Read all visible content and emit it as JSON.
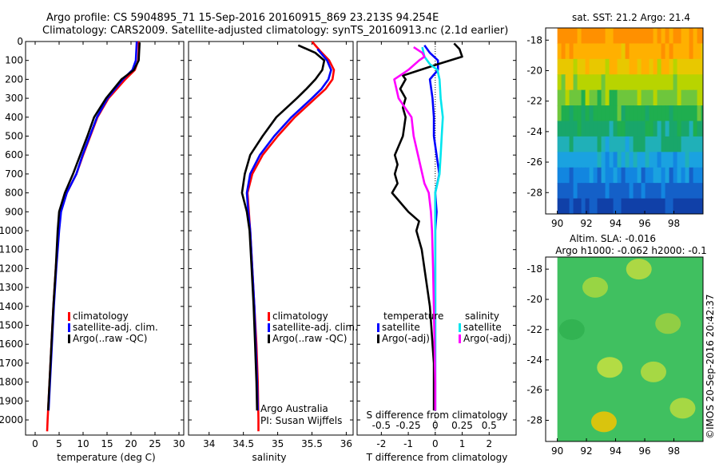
{
  "header": {
    "line1": "Argo profile: CS 5904895_71 15-Sep-2016 20160915_869 23.213S 94.254E",
    "line2": "Climatology: CARS2009. Satellite-adjusted climatology: synTS_20160913.nc (2.1d earlier)"
  },
  "colors": {
    "climatology": "#ff0000",
    "satellite": "#0000ff",
    "argo": "#000000",
    "sat_salinity": "#00e5ee",
    "argo_salinity_adj": "#ff00ff"
  },
  "chart_data": [
    {
      "type": "line",
      "id": "temperature",
      "xlabel": "temperature (deg C)",
      "ylabel": "",
      "xlim": [
        -2,
        31
      ],
      "ylim": [
        2080,
        0
      ],
      "xticks": [
        "0",
        "5",
        "10",
        "15",
        "20",
        "25",
        "30"
      ],
      "yticks": [
        "0",
        "100",
        "200",
        "300",
        "400",
        "500",
        "600",
        "700",
        "800",
        "900",
        "1000",
        "1100",
        "1200",
        "1300",
        "1400",
        "1500",
        "1600",
        "1700",
        "1800",
        "1900",
        "2000"
      ],
      "legend": [
        "climatology",
        "satellite-adj. clim.",
        "Argo(..raw -QC)"
      ],
      "series": [
        {
          "name": "climatology",
          "depth": [
            0,
            50,
            100,
            150,
            200,
            300,
            400,
            500,
            600,
            700,
            800,
            900,
            1000,
            1200,
            1400,
            1600,
            1800,
            2000,
            2060
          ],
          "values": [
            21.6,
            21.6,
            21.5,
            20.8,
            18.8,
            15.3,
            13.0,
            11.5,
            10.0,
            8.6,
            6.6,
            5.3,
            4.9,
            4.3,
            3.8,
            3.4,
            3.0,
            2.6,
            2.5
          ]
        },
        {
          "name": "satellite-adj. clim.",
          "depth": [
            0,
            50,
            100,
            150,
            200,
            300,
            400,
            500,
            600,
            700,
            800,
            900,
            1000,
            1200,
            1400,
            1600,
            1800,
            1950
          ],
          "values": [
            21.2,
            21.1,
            21.0,
            20.3,
            18.3,
            15.1,
            12.9,
            11.4,
            9.9,
            8.6,
            6.6,
            5.4,
            5.0,
            4.4,
            3.9,
            3.5,
            3.1,
            2.8
          ]
        },
        {
          "name": "Argo(..raw -QC)",
          "depth": [
            5,
            50,
            100,
            150,
            200,
            300,
            400,
            500,
            600,
            700,
            800,
            900,
            1000,
            1200,
            1400,
            1600,
            1800,
            1950
          ],
          "values": [
            21.8,
            21.7,
            21.6,
            20.6,
            18.0,
            14.8,
            12.3,
            10.9,
            9.4,
            7.9,
            6.2,
            5.0,
            4.7,
            4.3,
            3.8,
            3.4,
            3.0,
            2.7
          ]
        }
      ]
    },
    {
      "type": "line",
      "id": "salinity",
      "xlabel": "salinity",
      "ylabel": "",
      "xlim": [
        33.7,
        36.1
      ],
      "ylim": [
        2080,
        0
      ],
      "xticks": [
        "34",
        "34.5",
        "35",
        "35.5",
        "36"
      ],
      "legend": [
        "climatology",
        "satellite-adj. clim.",
        "Argo(..raw -QC)"
      ],
      "annotation": [
        "Argo Australia",
        "PI: Susan Wijffels"
      ],
      "series": [
        {
          "name": "climatology",
          "depth": [
            0,
            50,
            100,
            150,
            200,
            250,
            300,
            400,
            500,
            600,
            700,
            800,
            900,
            1000,
            1200,
            1400,
            1600,
            1800,
            2000,
            2060
          ],
          "values": [
            35.5,
            35.62,
            35.75,
            35.82,
            35.8,
            35.7,
            35.55,
            35.25,
            35.0,
            34.78,
            34.63,
            34.56,
            34.58,
            34.6,
            34.63,
            34.66,
            34.69,
            34.71,
            34.72,
            34.72
          ]
        },
        {
          "name": "satellite-adj. clim.",
          "depth": [
            40,
            100,
            150,
            200,
            250,
            300,
            400,
            500,
            600,
            700,
            800,
            900,
            1000,
            1200,
            1400,
            1600,
            1800,
            1950
          ],
          "values": [
            35.58,
            35.72,
            35.78,
            35.74,
            35.64,
            35.5,
            35.2,
            34.95,
            34.74,
            34.6,
            34.55,
            34.57,
            34.6,
            34.63,
            34.66,
            34.68,
            34.7,
            34.71
          ]
        },
        {
          "name": "Argo(..raw -QC)",
          "depth": [
            20,
            60,
            100,
            150,
            200,
            250,
            300,
            400,
            500,
            600,
            700,
            800,
            900,
            1000,
            1200,
            1400,
            1600,
            1800,
            1950
          ],
          "values": [
            35.3,
            35.55,
            35.68,
            35.65,
            35.55,
            35.42,
            35.28,
            34.98,
            34.78,
            34.6,
            34.52,
            34.48,
            34.55,
            34.59,
            34.62,
            34.65,
            34.67,
            34.69,
            34.7
          ]
        }
      ]
    },
    {
      "type": "line",
      "id": "differences",
      "xlabel": "T difference from climatology",
      "x2label": "S difference from climatology",
      "xlim": [
        -2.9,
        3.0
      ],
      "ylim": [
        2080,
        0
      ],
      "xticks": [
        "-2",
        "-1",
        "0",
        "1",
        "2"
      ],
      "x2ticks": [
        "-0.5",
        "-0.25",
        "0",
        "0.25",
        "0.5"
      ],
      "legend_temperature_title": "temperature",
      "legend_salinity_title": "salinity",
      "legend": [
        "satellite",
        "Argo(-adj)",
        "satellite",
        "Argo(-adj)"
      ],
      "series": [
        {
          "name": "temperature satellite",
          "depth": [
            20,
            60,
            100,
            150,
            200,
            300,
            400,
            500,
            600,
            700,
            800,
            900,
            1000,
            1200,
            1500,
            1800,
            1950
          ],
          "values": [
            -0.4,
            -0.2,
            0.1,
            0.1,
            -0.2,
            -0.1,
            -0.05,
            -0.05,
            0.05,
            0.15,
            0.0,
            0.05,
            0.0,
            0.0,
            0.0,
            0.0,
            0.0
          ]
        },
        {
          "name": "temperature Argo(-adj)",
          "depth": [
            10,
            40,
            80,
            120,
            180,
            200,
            250,
            300,
            350,
            400,
            500,
            600,
            650,
            700,
            750,
            800,
            850,
            900,
            950,
            1000,
            1100,
            1200,
            1300,
            1400,
            1500,
            1600,
            1700,
            1800,
            1950
          ],
          "values": [
            0.7,
            0.9,
            1.0,
            0.1,
            -1.2,
            -1.1,
            -1.3,
            -1.1,
            -1.2,
            -1.1,
            -1.2,
            -1.5,
            -1.4,
            -1.5,
            -1.4,
            -1.6,
            -1.3,
            -1.0,
            -0.6,
            -0.7,
            -0.5,
            -0.4,
            -0.3,
            -0.2,
            -0.15,
            -0.1,
            -0.05,
            -0.05,
            -0.05
          ]
        },
        {
          "name": "salinity satellite",
          "depth": [
            30,
            80,
            120,
            150,
            200,
            300,
            400,
            500,
            600,
            700,
            800,
            900,
            1000,
            1200,
            1500,
            1800,
            1950
          ],
          "values": [
            -0.12,
            -0.1,
            -0.05,
            0.02,
            0.04,
            0.05,
            0.07,
            0.06,
            0.05,
            0.04,
            0.0,
            0.0,
            0.0,
            0.0,
            0.0,
            0.0,
            0.0
          ]
        },
        {
          "name": "salinity Argo(-adj)",
          "depth": [
            30,
            60,
            80,
            100,
            150,
            200,
            300,
            400,
            500,
            600,
            700,
            750,
            800,
            900,
            1000,
            1200,
            1500,
            1800,
            1950
          ],
          "values": [
            -0.2,
            -0.12,
            -0.1,
            -0.15,
            -0.25,
            -0.38,
            -0.34,
            -0.22,
            -0.2,
            -0.16,
            -0.12,
            -0.1,
            -0.06,
            -0.04,
            -0.03,
            -0.02,
            -0.01,
            0.0,
            0.0
          ]
        }
      ]
    },
    {
      "type": "heatmap",
      "id": "sst_map",
      "title": "sat. SST: 21.2 Argo: 21.4",
      "xlim": [
        89.2,
        100
      ],
      "ylim": [
        -29.4,
        -17.2
      ],
      "xticks": [
        "90",
        "92",
        "94",
        "96",
        "98"
      ],
      "yticks": [
        "-18",
        "-20",
        "-22",
        "-24",
        "-26",
        "-28"
      ],
      "row_lat": [
        -17.5,
        -18.5,
        -19.5,
        -20.5,
        -21.5,
        -22.5,
        -23.5,
        -24.5,
        -25.5,
        -26.5,
        -27.5,
        -28.5
      ],
      "row_colors": [
        "#ff9000",
        "#ffb000",
        "#e8c800",
        "#b8d400",
        "#6ec63c",
        "#1fae4f",
        "#19a66a",
        "#20b0b8",
        "#1aa2e0",
        "#1286e0",
        "#1460c8",
        "#1040a8"
      ]
    },
    {
      "type": "heatmap",
      "id": "sla_map",
      "title": "Altim. SLA: -0.016",
      "subtitle": "Argo h1000: -0.062 h2000: -0.1",
      "xlim": [
        89.2,
        100
      ],
      "ylim": [
        -29.4,
        -17.2
      ],
      "xticks": [
        "90",
        "92",
        "94",
        "96",
        "98"
      ],
      "yticks": [
        "-18",
        "-20",
        "-22",
        "-24",
        "-26",
        "-28"
      ],
      "base_color": "#40c060",
      "blobs": [
        {
          "lon": 93.2,
          "lat": -28.1,
          "color": "#f4c400"
        },
        {
          "lon": 93.6,
          "lat": -24.5,
          "color": "#c8e040"
        },
        {
          "lon": 96.6,
          "lat": -24.8,
          "color": "#b8dc40"
        },
        {
          "lon": 92.6,
          "lat": -19.2,
          "color": "#a8d840"
        },
        {
          "lon": 95.6,
          "lat": -18.0,
          "color": "#c0dc40"
        },
        {
          "lon": 98.6,
          "lat": -27.2,
          "color": "#b8dc40"
        },
        {
          "lon": 97.6,
          "lat": -21.6,
          "color": "#a0d040"
        },
        {
          "lon": 91.0,
          "lat": -22.0,
          "color": "#30b050"
        }
      ]
    }
  ],
  "footer": {
    "stamp": "©IMOS 20-Sep-2016 20:42:37"
  }
}
